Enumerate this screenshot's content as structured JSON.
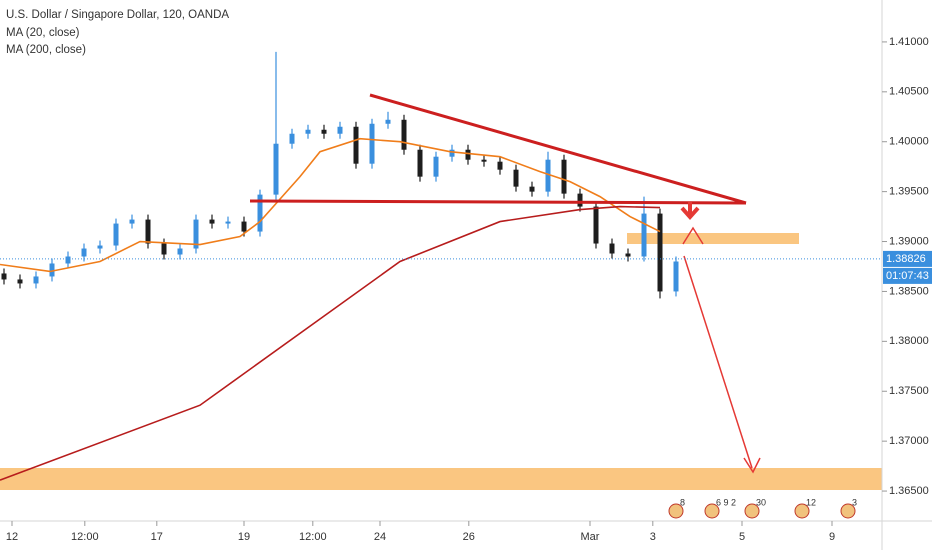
{
  "chart_data": {
    "type": "candlestick",
    "title": "U.S. Dollar / Singapore Dollar, 120, OANDA",
    "up_color": "#3a8fde",
    "down_color": "#1e1e1e",
    "xlim": [
      0,
      110
    ],
    "ylim": [
      1.3621,
      1.4142
    ],
    "xticks": [
      {
        "value": 1.5,
        "label": "12"
      },
      {
        "value": 10.6,
        "label": "12:00"
      },
      {
        "value": 19.6,
        "label": "17"
      },
      {
        "value": 30.5,
        "label": "19"
      },
      {
        "value": 39.1,
        "label": "12:00"
      },
      {
        "value": 47.5,
        "label": "24"
      },
      {
        "value": 58.6,
        "label": "26"
      },
      {
        "value": 73.75,
        "label": "Mar"
      },
      {
        "value": 81.6,
        "label": "3"
      },
      {
        "value": 92.75,
        "label": "5"
      },
      {
        "value": 104,
        "label": "9"
      }
    ],
    "yticks": [
      {
        "value": 1.41,
        "label": "1.41000"
      },
      {
        "value": 1.405,
        "label": "1.40500"
      },
      {
        "value": 1.4,
        "label": "1.40000"
      },
      {
        "value": 1.395,
        "label": "1.39500"
      },
      {
        "value": 1.39,
        "label": "1.39000"
      },
      {
        "value": 1.385,
        "label": "1.38500"
      },
      {
        "value": 1.38,
        "label": "1.38000"
      },
      {
        "value": 1.375,
        "label": "1.37500"
      },
      {
        "value": 1.37,
        "label": "1.37000"
      },
      {
        "value": 1.365,
        "label": "1.36500"
      }
    ],
    "candles": {
      "x": [
        0.5,
        2.5,
        4.5,
        6.5,
        8.5,
        10.5,
        12.5,
        14.5,
        16.5,
        18.5,
        20.5,
        22.5,
        24.5,
        26.5,
        28.5,
        30.5,
        32.5,
        34.5,
        36.5,
        38.5,
        40.5,
        42.5,
        44.5,
        46.5,
        48.5,
        50.5,
        52.5,
        54.5,
        56.5,
        58.5,
        60.5,
        62.5,
        64.5,
        66.5,
        68.5,
        70.5,
        72.5,
        74.5,
        76.5,
        78.5,
        80.5,
        82.5,
        84.5
      ],
      "open": [
        1.3868,
        1.3862,
        1.3858,
        1.3865,
        1.3878,
        1.3885,
        1.3893,
        1.3896,
        1.3918,
        1.3922,
        1.3898,
        1.3887,
        1.3893,
        1.3922,
        1.3918,
        1.392,
        1.391,
        1.3947,
        1.3998,
        1.4008,
        1.4012,
        1.4008,
        1.4015,
        1.3978,
        1.4018,
        1.4022,
        1.3992,
        1.3965,
        1.3985,
        1.3992,
        1.3982,
        1.398,
        1.3972,
        1.3955,
        1.395,
        1.3982,
        1.3948,
        1.3935,
        1.3898,
        1.3888,
        1.3885,
        1.3928,
        1.385
      ],
      "high": [
        1.3873,
        1.3867,
        1.387,
        1.3883,
        1.389,
        1.3898,
        1.3901,
        1.3923,
        1.3927,
        1.3927,
        1.3903,
        1.3898,
        1.3927,
        1.3927,
        1.3925,
        1.3925,
        1.3952,
        1.409,
        1.4013,
        1.4017,
        1.4017,
        1.402,
        1.402,
        1.4023,
        1.403,
        1.4027,
        1.3997,
        1.399,
        1.3997,
        1.3997,
        1.3987,
        1.3985,
        1.3977,
        1.396,
        1.399,
        1.3987,
        1.3953,
        1.394,
        1.3903,
        1.3893,
        1.3945,
        1.3933,
        1.3885
      ],
      "low": [
        1.3857,
        1.3853,
        1.3853,
        1.386,
        1.3873,
        1.388,
        1.3888,
        1.3891,
        1.3913,
        1.3893,
        1.3882,
        1.3882,
        1.3888,
        1.3913,
        1.3913,
        1.3905,
        1.3905,
        1.3942,
        1.3993,
        1.4003,
        1.4003,
        1.4003,
        1.3973,
        1.3973,
        1.4013,
        1.3987,
        1.396,
        1.396,
        1.398,
        1.3977,
        1.3975,
        1.3967,
        1.395,
        1.3945,
        1.3945,
        1.3943,
        1.393,
        1.3893,
        1.3883,
        1.388,
        1.388,
        1.3843,
        1.3845
      ],
      "close": [
        1.3862,
        1.3858,
        1.3865,
        1.3878,
        1.3885,
        1.3893,
        1.3896,
        1.3918,
        1.3922,
        1.3898,
        1.3887,
        1.3893,
        1.3922,
        1.3918,
        1.392,
        1.391,
        1.3947,
        1.3998,
        1.4008,
        1.4012,
        1.4008,
        1.4015,
        1.3978,
        1.4018,
        1.4022,
        1.3992,
        1.3965,
        1.3985,
        1.3992,
        1.3982,
        1.398,
        1.3972,
        1.3955,
        1.395,
        1.3982,
        1.3948,
        1.3935,
        1.3898,
        1.3888,
        1.3885,
        1.3928,
        1.385,
        1.388
      ]
    },
    "series": [
      {
        "name": "MA (20, close)",
        "color": "#f07d1a",
        "x": [
          0,
          6.25,
          12.5,
          17.5,
          25,
          30,
          32.5,
          37.5,
          40,
          45,
          50,
          56.25,
          62.5,
          67.5,
          71.25,
          75,
          78.75,
          82.5
        ],
        "values": [
          1.3877,
          1.387,
          1.388,
          1.39,
          1.3897,
          1.3905,
          1.392,
          1.3965,
          1.399,
          1.4003,
          1.4,
          1.399,
          1.3985,
          1.397,
          1.396,
          1.3945,
          1.3925,
          1.391
        ]
      },
      {
        "name": "MA (200, close)",
        "color": "#b71c1c",
        "x": [
          0,
          25,
          50,
          62.5,
          72.5,
          77.5,
          82.5
        ],
        "values": [
          1.3661,
          1.3736,
          1.388,
          1.392,
          1.3932,
          1.3935,
          1.3934
        ]
      }
    ],
    "last_price": 1.38826,
    "countdown": "01:07:43",
    "events": [
      "8",
      "6 9 2",
      "30",
      "12",
      "3"
    ]
  }
}
